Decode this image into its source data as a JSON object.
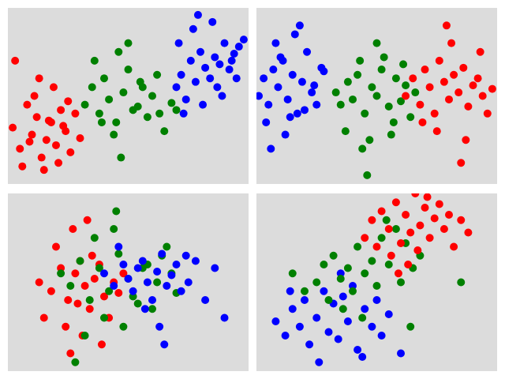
{
  "chart_data": [
    {
      "type": "scatter",
      "xlim": [
        0,
        100
      ],
      "ylim": [
        0,
        100
      ],
      "series": [
        {
          "color": "#ff0000",
          "x": [
            2,
            5,
            8,
            10,
            12,
            14,
            16,
            18,
            20,
            22,
            24,
            26,
            28,
            30,
            6,
            11,
            15,
            19,
            23,
            9,
            13,
            17,
            21,
            25,
            3
          ],
          "y": [
            32,
            20,
            45,
            28,
            38,
            15,
            25,
            35,
            22,
            42,
            30,
            18,
            40,
            26,
            10,
            50,
            8,
            55,
            33,
            24,
            60,
            36,
            12,
            47,
            70
          ]
        },
        {
          "color": "#008000",
          "x": [
            32,
            35,
            38,
            40,
            42,
            45,
            48,
            50,
            52,
            55,
            58,
            60,
            62,
            65,
            68,
            36,
            44,
            46,
            54,
            56,
            63,
            39,
            50,
            70,
            47
          ],
          "y": [
            45,
            55,
            40,
            60,
            48,
            35,
            52,
            65,
            42,
            58,
            38,
            50,
            62,
            30,
            46,
            70,
            28,
            75,
            44,
            55,
            40,
            35,
            80,
            42,
            15
          ]
        },
        {
          "color": "#0000ff",
          "x": [
            70,
            72,
            74,
            76,
            78,
            80,
            82,
            84,
            86,
            88,
            90,
            92,
            94,
            96,
            98,
            73,
            77,
            85,
            89,
            93,
            71,
            81,
            95,
            79,
            87
          ],
          "y": [
            55,
            62,
            48,
            70,
            58,
            75,
            66,
            60,
            72,
            68,
            80,
            65,
            74,
            78,
            82,
            40,
            88,
            92,
            50,
            70,
            80,
            45,
            60,
            96,
            55
          ]
        }
      ]
    },
    {
      "type": "scatter",
      "xlim": [
        0,
        100
      ],
      "ylim": [
        0,
        100
      ],
      "series": [
        {
          "color": "#0000ff",
          "x": [
            1,
            3,
            5,
            7,
            9,
            11,
            13,
            15,
            17,
            19,
            21,
            23,
            25,
            27,
            4,
            8,
            12,
            16,
            20,
            24,
            6,
            10,
            14,
            18,
            28
          ],
          "y": [
            50,
            60,
            45,
            65,
            55,
            70,
            48,
            62,
            40,
            58,
            75,
            52,
            45,
            66,
            35,
            80,
            28,
            85,
            42,
            56,
            20,
            72,
            38,
            90,
            64
          ]
        },
        {
          "color": "#008000",
          "x": [
            33,
            35,
            38,
            40,
            42,
            45,
            48,
            50,
            52,
            55,
            58,
            60,
            62,
            64,
            66,
            37,
            43,
            47,
            53,
            57,
            61,
            44,
            50,
            56,
            46
          ],
          "y": [
            52,
            45,
            58,
            48,
            62,
            40,
            55,
            50,
            65,
            44,
            60,
            47,
            56,
            38,
            52,
            30,
            70,
            25,
            72,
            35,
            68,
            20,
            80,
            28,
            5
          ]
        },
        {
          "color": "#ff0000",
          "x": [
            62,
            65,
            68,
            70,
            72,
            74,
            76,
            78,
            80,
            82,
            84,
            86,
            88,
            90,
            92,
            94,
            96,
            98,
            69,
            75,
            81,
            87,
            93,
            79,
            85
          ],
          "y": [
            50,
            60,
            45,
            65,
            55,
            40,
            70,
            58,
            48,
            62,
            52,
            66,
            44,
            56,
            60,
            50,
            40,
            54,
            35,
            30,
            80,
            25,
            75,
            90,
            12
          ]
        }
      ]
    },
    {
      "type": "scatter",
      "xlim": [
        0,
        100
      ],
      "ylim": [
        0,
        100
      ],
      "series": [
        {
          "color": "#ff0000",
          "x": [
            13,
            18,
            22,
            25,
            28,
            30,
            32,
            34,
            36,
            38,
            40,
            42,
            44,
            46,
            20,
            24,
            27,
            31,
            35,
            39,
            15,
            48,
            26,
            33,
            29
          ],
          "y": [
            50,
            45,
            58,
            40,
            55,
            62,
            48,
            35,
            52,
            60,
            42,
            30,
            50,
            44,
            70,
            25,
            80,
            20,
            65,
            15,
            30,
            55,
            10,
            85,
            38
          ]
        },
        {
          "color": "#008000",
          "x": [
            22,
            26,
            30,
            34,
            38,
            42,
            46,
            50,
            54,
            58,
            62,
            66,
            70,
            36,
            40,
            44,
            48,
            52,
            56,
            60,
            32,
            64,
            45,
            28,
            68
          ],
          "y": [
            55,
            48,
            62,
            40,
            58,
            45,
            66,
            52,
            38,
            60,
            50,
            70,
            44,
            75,
            30,
            80,
            25,
            42,
            58,
            35,
            20,
            65,
            90,
            5,
            55
          ]
        },
        {
          "color": "#0000ff",
          "x": [
            40,
            44,
            48,
            50,
            52,
            54,
            56,
            58,
            60,
            62,
            64,
            66,
            68,
            70,
            72,
            75,
            78,
            82,
            86,
            90,
            46,
            57,
            63,
            74,
            65
          ],
          "y": [
            55,
            48,
            60,
            52,
            45,
            58,
            62,
            50,
            40,
            56,
            66,
            48,
            54,
            60,
            45,
            50,
            62,
            40,
            58,
            30,
            70,
            35,
            25,
            65,
            15
          ]
        }
      ]
    },
    {
      "type": "scatter",
      "xlim": [
        0,
        100
      ],
      "ylim": [
        0,
        100
      ],
      "series": [
        {
          "color": "#0000ff",
          "x": [
            8,
            12,
            15,
            18,
            20,
            22,
            25,
            28,
            30,
            32,
            34,
            36,
            38,
            40,
            42,
            45,
            48,
            50,
            52,
            55,
            26,
            35,
            44,
            60,
            14
          ],
          "y": [
            28,
            20,
            35,
            25,
            40,
            15,
            30,
            45,
            22,
            38,
            18,
            42,
            28,
            48,
            12,
            35,
            25,
            40,
            20,
            32,
            5,
            55,
            8,
            10,
            45
          ]
        },
        {
          "color": "#008000",
          "x": [
            15,
            20,
            25,
            28,
            30,
            32,
            35,
            38,
            40,
            42,
            45,
            48,
            50,
            52,
            55,
            58,
            60,
            62,
            65,
            68,
            44,
            36,
            54,
            85,
            64
          ],
          "y": [
            55,
            45,
            50,
            60,
            40,
            65,
            52,
            58,
            45,
            70,
            55,
            62,
            48,
            75,
            60,
            80,
            50,
            72,
            58,
            65,
            30,
            35,
            85,
            50,
            25
          ]
        },
        {
          "color": "#ff0000",
          "x": [
            45,
            48,
            50,
            52,
            55,
            58,
            60,
            62,
            64,
            66,
            68,
            70,
            72,
            74,
            76,
            78,
            80,
            82,
            85,
            88,
            56,
            63,
            71,
            59,
            67
          ],
          "y": [
            75,
            85,
            70,
            90,
            80,
            95,
            72,
            88,
            78,
            100,
            82,
            92,
            75,
            86,
            94,
            80,
            88,
            70,
            85,
            78,
            65,
            60,
            98,
            55,
            68
          ]
        }
      ]
    }
  ]
}
